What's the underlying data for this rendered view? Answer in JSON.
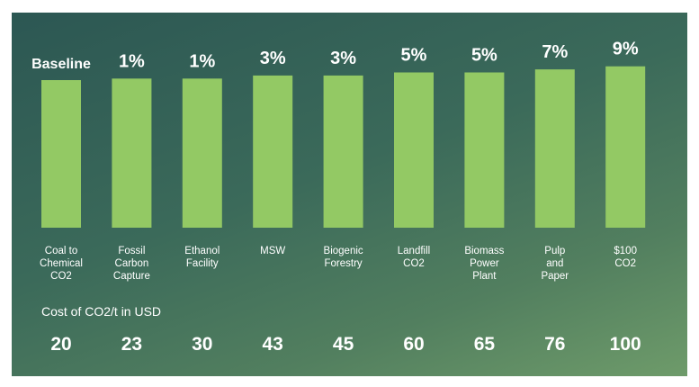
{
  "chart_data": {
    "type": "bar",
    "title": "",
    "xlabel": "",
    "ylabel": "",
    "categories": [
      "Coal to\nChemical\nCO2",
      "Fossil\nCarbon\nCapture",
      "Ethanol\nFacility",
      "MSW",
      "Biogenic\nForestry",
      "Landfill\nCO2",
      "Biomass\nPower\nPlant",
      "Pulp\nand\nPaper",
      "$100\nCO2"
    ],
    "bar_labels": [
      "Baseline",
      "1%",
      "1%",
      "3%",
      "3%",
      "5%",
      "5%",
      "7%",
      "9%"
    ],
    "values": [
      0,
      1,
      1,
      3,
      3,
      5,
      5,
      7,
      9
    ],
    "cost_label": "Cost of CO2/t in USD",
    "costs": [
      "20",
      "23",
      "30",
      "43",
      "45",
      "60",
      "65",
      "76",
      "100"
    ],
    "grid": false,
    "legend": "none"
  },
  "colors": {
    "bar": "#93c964",
    "label": "#ffffff",
    "background_top": "#2c5753",
    "background_bottom": "#6e9b6a"
  }
}
